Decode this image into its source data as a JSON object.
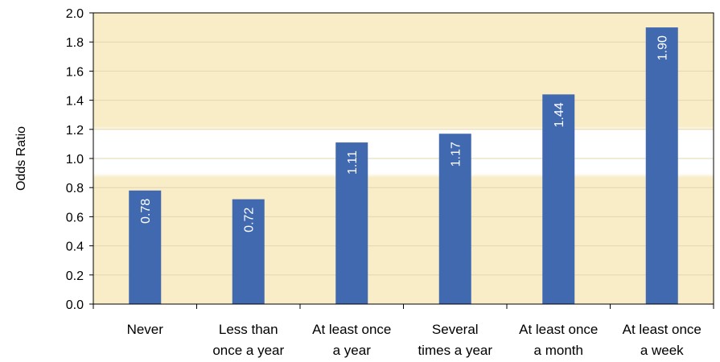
{
  "chart_data": {
    "type": "bar",
    "title": "",
    "xlabel": "",
    "ylabel": "Odds Ratio",
    "ylim": [
      0,
      2.0
    ],
    "yticks": [
      "0.0",
      "0.2",
      "0.4",
      "0.6",
      "0.8",
      "1.0",
      "1.2",
      "1.4",
      "1.6",
      "1.8",
      "2.0"
    ],
    "categories": [
      [
        "Never"
      ],
      [
        "Less than",
        "once a year"
      ],
      [
        "At least once",
        "a year"
      ],
      [
        "Several",
        "times a year"
      ],
      [
        "At least once",
        "a month"
      ],
      [
        "At least once",
        "a week"
      ]
    ],
    "values": [
      0.78,
      0.72,
      1.11,
      1.17,
      1.44,
      1.9
    ],
    "data_labels": [
      "0.78",
      "0.72",
      "1.11",
      "1.17",
      "1.44",
      "1.90"
    ],
    "reference_band": [
      0.87,
      1.22
    ],
    "grid": true,
    "legend": "none",
    "colors": {
      "bar": "#4169B0",
      "plot_background": "#F9EDC8",
      "reference_band": "#FFFFFF",
      "gridline": "#E2D6B3",
      "axis": "#000000"
    }
  }
}
